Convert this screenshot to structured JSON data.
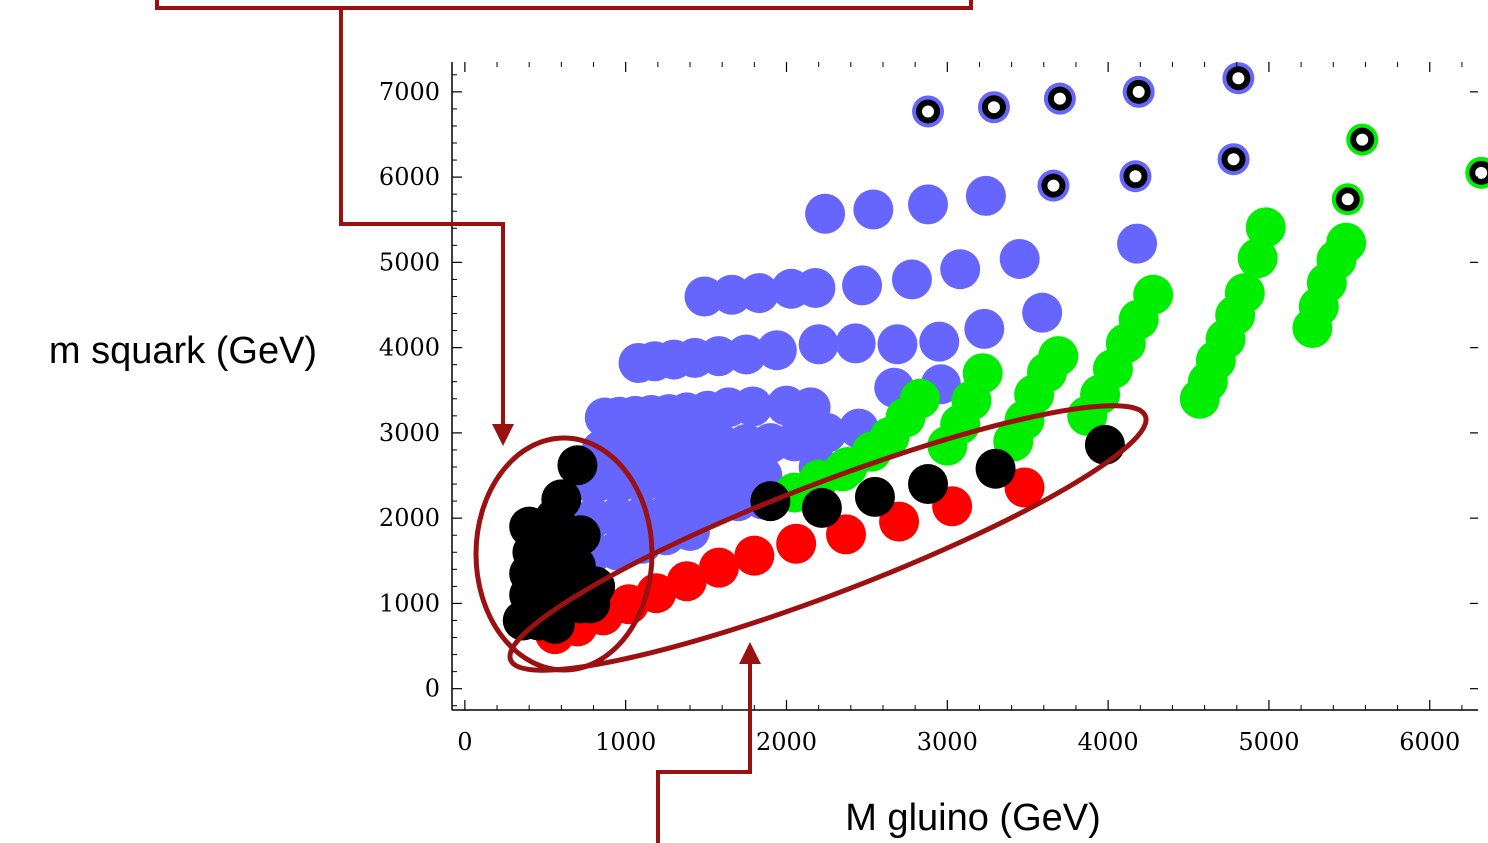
{
  "colors": {
    "blue": "#6666ff",
    "green": "#00ee00",
    "red": "#ff0000",
    "black": "#000000",
    "annotation": "#9b1111",
    "marker_center": "#ffffff"
  },
  "chart_data": {
    "type": "scatter",
    "title": "",
    "xlabel": "M gluino (GeV)",
    "ylabel": "m squark (GeV)",
    "xlim": [
      -80,
      6300
    ],
    "ylim": [
      -250,
      7350
    ],
    "x_ticks": [
      "0",
      "1000",
      "2000",
      "3000",
      "4000",
      "5000",
      "6000"
    ],
    "y_ticks": [
      "0",
      "1000",
      "2000",
      "3000",
      "4000",
      "5000",
      "6000",
      "7000"
    ],
    "grid": false,
    "legend": "none",
    "series": [
      {
        "color": "blue",
        "points": [
          [
            870,
            3180
          ],
          [
            960,
            3190
          ],
          [
            1060,
            3200
          ],
          [
            1160,
            3210
          ],
          [
            1270,
            3220
          ],
          [
            1380,
            3240
          ],
          [
            1510,
            3260
          ],
          [
            1640,
            3300
          ],
          [
            1790,
            3310
          ],
          [
            1080,
            3820
          ],
          [
            1180,
            3840
          ],
          [
            1300,
            3860
          ],
          [
            1430,
            3880
          ],
          [
            1580,
            3900
          ],
          [
            1750,
            3920
          ],
          [
            1940,
            3970
          ],
          [
            1490,
            4600
          ],
          [
            1660,
            4620
          ],
          [
            1830,
            4640
          ],
          [
            2030,
            4690
          ],
          [
            2200,
            4040
          ],
          [
            2430,
            4050
          ],
          [
            2690,
            4040
          ],
          [
            2950,
            4070
          ],
          [
            3230,
            4220
          ],
          [
            3590,
            4410
          ],
          [
            2180,
            4700
          ],
          [
            2470,
            4730
          ],
          [
            2780,
            4800
          ],
          [
            3080,
            4920
          ],
          [
            3450,
            5040
          ],
          [
            4180,
            5220
          ],
          [
            2240,
            5570
          ],
          [
            2540,
            5620
          ],
          [
            2880,
            5680
          ],
          [
            3240,
            5780
          ],
          [
            2000,
            3320
          ],
          [
            2150,
            3300
          ],
          [
            2250,
            3000
          ],
          [
            2450,
            3050
          ],
          [
            2670,
            3530
          ],
          [
            2960,
            3570
          ],
          [
            850,
            2800
          ],
          [
            1000,
            2810
          ],
          [
            1150,
            2820
          ],
          [
            1300,
            2830
          ],
          [
            1450,
            2850
          ],
          [
            1600,
            2860
          ],
          [
            1750,
            2870
          ],
          [
            1900,
            2880
          ],
          [
            2050,
            2900
          ],
          [
            2200,
            2600
          ],
          [
            800,
            2400
          ],
          [
            950,
            2410
          ],
          [
            1100,
            2420
          ],
          [
            1250,
            2430
          ],
          [
            1400,
            2440
          ],
          [
            1550,
            2460
          ],
          [
            1700,
            2480
          ],
          [
            1850,
            2500
          ],
          [
            800,
            2000
          ],
          [
            950,
            2010
          ],
          [
            1100,
            2020
          ],
          [
            1250,
            2040
          ],
          [
            1400,
            2080
          ],
          [
            1550,
            2150
          ],
          [
            1700,
            2200
          ],
          [
            1850,
            2220
          ],
          [
            800,
            1600
          ],
          [
            950,
            1620
          ],
          [
            1100,
            1700
          ],
          [
            1250,
            1800
          ],
          [
            1400,
            1850
          ]
        ]
      },
      {
        "color": "green",
        "points": [
          [
            2380,
            2600
          ],
          [
            2530,
            2780
          ],
          [
            2640,
            2950
          ],
          [
            2740,
            3180
          ],
          [
            2830,
            3400
          ],
          [
            2050,
            2300
          ],
          [
            2200,
            2450
          ],
          [
            2350,
            2550
          ],
          [
            3000,
            2850
          ],
          [
            3080,
            3100
          ],
          [
            3150,
            3380
          ],
          [
            3220,
            3700
          ],
          [
            3410,
            2900
          ],
          [
            3480,
            3150
          ],
          [
            3540,
            3450
          ],
          [
            3620,
            3710
          ],
          [
            3690,
            3900
          ],
          [
            3870,
            3200
          ],
          [
            3950,
            3450
          ],
          [
            4030,
            3750
          ],
          [
            4110,
            4050
          ],
          [
            4190,
            4330
          ],
          [
            4280,
            4620
          ],
          [
            4570,
            3400
          ],
          [
            4620,
            3600
          ],
          [
            4670,
            3850
          ],
          [
            4730,
            4100
          ],
          [
            4790,
            4380
          ],
          [
            4850,
            4640
          ],
          [
            4930,
            5050
          ],
          [
            4980,
            5410
          ],
          [
            5270,
            4230
          ],
          [
            5310,
            4480
          ],
          [
            5360,
            4760
          ],
          [
            5420,
            5030
          ],
          [
            5480,
            5230
          ]
        ]
      },
      {
        "color": "red",
        "points": [
          [
            560,
            640
          ],
          [
            700,
            730
          ],
          [
            860,
            860
          ],
          [
            1020,
            990
          ],
          [
            1190,
            1120
          ],
          [
            1380,
            1260
          ],
          [
            1580,
            1420
          ],
          [
            1800,
            1560
          ],
          [
            2060,
            1700
          ],
          [
            2370,
            1810
          ],
          [
            2700,
            1960
          ],
          [
            3030,
            2140
          ],
          [
            3480,
            2360
          ]
        ]
      },
      {
        "color": "black",
        "points": [
          [
            700,
            2620
          ],
          [
            600,
            2220
          ],
          [
            540,
            1820
          ],
          [
            530,
            1520
          ],
          [
            540,
            1250
          ],
          [
            520,
            1000
          ],
          [
            560,
            760
          ],
          [
            460,
            800
          ],
          [
            720,
            1000
          ],
          [
            810,
            1200
          ],
          [
            690,
            1440
          ],
          [
            560,
            2000
          ],
          [
            400,
            1900
          ],
          [
            420,
            1600
          ],
          [
            400,
            1350
          ],
          [
            400,
            1100
          ],
          [
            360,
            800
          ],
          [
            460,
            1200
          ],
          [
            640,
            1600
          ],
          [
            720,
            1800
          ],
          [
            620,
            1300
          ],
          [
            650,
            1100
          ],
          [
            780,
            1000
          ],
          [
            1900,
            2200
          ],
          [
            2220,
            2120
          ],
          [
            2550,
            2250
          ],
          [
            2880,
            2400
          ],
          [
            3300,
            2580
          ],
          [
            3980,
            2860
          ]
        ]
      }
    ],
    "ring_markers": [
      {
        "ring": "blue",
        "points": [
          [
            2880,
            6770
          ],
          [
            3290,
            6820
          ],
          [
            3700,
            6920
          ],
          [
            4190,
            7000
          ],
          [
            4810,
            7160
          ],
          [
            3660,
            5900
          ],
          [
            4170,
            6010
          ],
          [
            4780,
            6210
          ]
        ]
      },
      {
        "ring": "green",
        "points": [
          [
            5490,
            5740
          ],
          [
            5580,
            6440
          ],
          [
            6320,
            6050
          ]
        ]
      }
    ]
  },
  "annotations": {
    "top_box_label": "",
    "bottom_arrow_label": ""
  }
}
